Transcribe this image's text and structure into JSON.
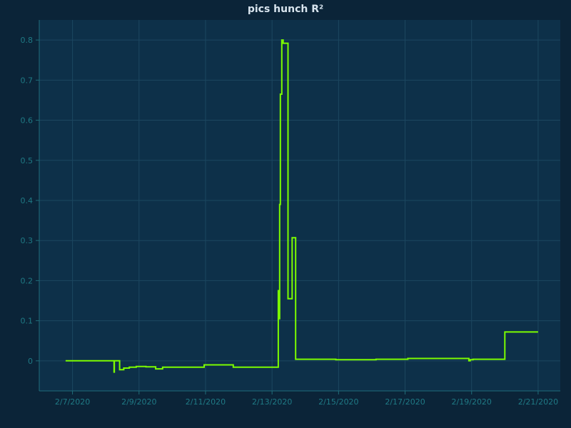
{
  "chart_data": {
    "type": "line",
    "title": "pics hunch R²",
    "xlabel": "",
    "ylabel": "",
    "xlim": [
      "2020-02-06 00:00",
      "2020-02-21 16:00"
    ],
    "ylim": [
      -0.075,
      0.85
    ],
    "x_ticks": [
      "2/7/2020",
      "2/9/2020",
      "2/11/2020",
      "2/13/2020",
      "2/15/2020",
      "2/17/2020",
      "2/19/2020",
      "2/21/2020"
    ],
    "x_tick_dates": [
      "2020-02-07 00:00",
      "2020-02-09 00:00",
      "2020-02-11 00:00",
      "2020-02-13 00:00",
      "2020-02-15 00:00",
      "2020-02-17 00:00",
      "2020-02-19 00:00",
      "2020-02-21 00:00"
    ],
    "y_ticks": [
      "0",
      "0.1",
      "0.2",
      "0.3",
      "0.4",
      "0.5",
      "0.6",
      "0.7",
      "0.8"
    ],
    "y_tick_values": [
      0,
      0.1,
      0.2,
      0.3,
      0.4,
      0.5,
      0.6,
      0.7,
      0.8
    ],
    "grid": true,
    "colors": {
      "background": "#0b2438",
      "plot": "#0d3049",
      "line": "#7cfc00",
      "grid": "#1c4760",
      "tick_text": "#1f7a85"
    },
    "series": [
      {
        "name": "",
        "step": true,
        "x": [
          "2020-02-06 19:00",
          "2020-02-08 06:00",
          "2020-02-08 06:10",
          "2020-02-08 06:30",
          "2020-02-08 10:00",
          "2020-02-08 13:00",
          "2020-02-08 17:00",
          "2020-02-08 22:00",
          "2020-02-09 05:00",
          "2020-02-09 12:00",
          "2020-02-09 17:00",
          "2020-02-10 23:00",
          "2020-02-11 20:00",
          "2020-02-13 04:30",
          "2020-02-13 05:00",
          "2020-02-13 05:30",
          "2020-02-13 06:00",
          "2020-02-13 07:00",
          "2020-02-13 08:00",
          "2020-02-13 11:30",
          "2020-02-13 12:00",
          "2020-02-13 14:30",
          "2020-02-13 17:00",
          "2020-02-14 22:00",
          "2020-02-16 03:00",
          "2020-02-17 02:00",
          "2020-02-18 22:00",
          "2020-02-18 23:00",
          "2020-02-19 01:00",
          "2020-02-20 00:00",
          "2020-02-21 00:00"
        ],
        "y": [
          0.0,
          -0.028,
          0.0,
          0.0,
          -0.022,
          -0.018,
          -0.016,
          -0.014,
          -0.015,
          -0.02,
          -0.016,
          -0.01,
          -0.016,
          0.175,
          0.105,
          0.39,
          0.665,
          0.8,
          0.792,
          0.155,
          0.155,
          0.307,
          0.004,
          0.003,
          0.004,
          0.006,
          0.0,
          0.003,
          0.004,
          0.072,
          0.072
        ]
      }
    ]
  }
}
